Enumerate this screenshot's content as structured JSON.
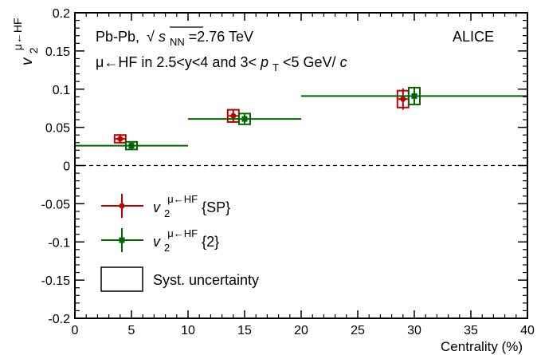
{
  "chart_data": {
    "type": "scatter",
    "title": "",
    "xlabel": "Centrality (%)",
    "ylabel": {
      "main": "v",
      "sub": "2",
      "sup": "μ←HF"
    },
    "xlim": [
      0,
      40
    ],
    "ylim": [
      -0.2,
      0.2
    ],
    "xticks": [
      "0",
      "5",
      "10",
      "15",
      "20",
      "25",
      "30",
      "35",
      "40"
    ],
    "yticks": [
      "-0.2",
      "-0.15",
      "-0.1",
      "-0.05",
      "0",
      "0.05",
      "0.1",
      "0.15",
      "0.2"
    ],
    "zero_line": {
      "y": 0,
      "style": "dashed"
    },
    "annotations": {
      "system_prefix": "Pb-Pb,",
      "sqrt": "√",
      "s_letter": "s",
      "nn_sub": "NN",
      "energy": "=2.76 TeV",
      "experiment": "ALICE",
      "kin_part1": "μ←HF in 2.5<y<4 and 3<",
      "pt_letter": "p",
      "pt_sub": "T",
      "kin_part2": "<5 GeV/",
      "c_letter": "c"
    },
    "series": [
      {
        "name": "v2{SP}",
        "color": "#c00000",
        "marker": "circle",
        "x": [
          4,
          14,
          29
        ],
        "y": [
          0.035,
          0.065,
          0.087
        ],
        "yerr": [
          0.006,
          0.009,
          0.014
        ],
        "syst": [
          0.005,
          0.008,
          0.011
        ]
      },
      {
        "name": "v2{2}",
        "color": "#006600",
        "marker": "square",
        "x": [
          5,
          15,
          30
        ],
        "y": [
          0.026,
          0.061,
          0.091
        ],
        "yerr": [
          0.004,
          0.006,
          0.012
        ],
        "syst": [
          0.005,
          0.007,
          0.011
        ],
        "xerr": [
          [
            0,
            10
          ],
          [
            10,
            20
          ],
          [
            20,
            40
          ]
        ]
      }
    ],
    "legend": {
      "position": "bottom-left",
      "entries": [
        {
          "main": "v",
          "sub": "2",
          "sup": "μ←HF",
          "suffix": "{SP}",
          "color": "#c00000",
          "marker": "circle"
        },
        {
          "main": "v",
          "sub": "2",
          "sup": "μ←HF",
          "suffix": "{2}",
          "color": "#006600",
          "marker": "square"
        },
        {
          "label": "Syst. uncertainty",
          "box": true
        }
      ]
    },
    "colors": {
      "sp": "#c00000",
      "two": "#006600",
      "axis": "#000000"
    }
  }
}
